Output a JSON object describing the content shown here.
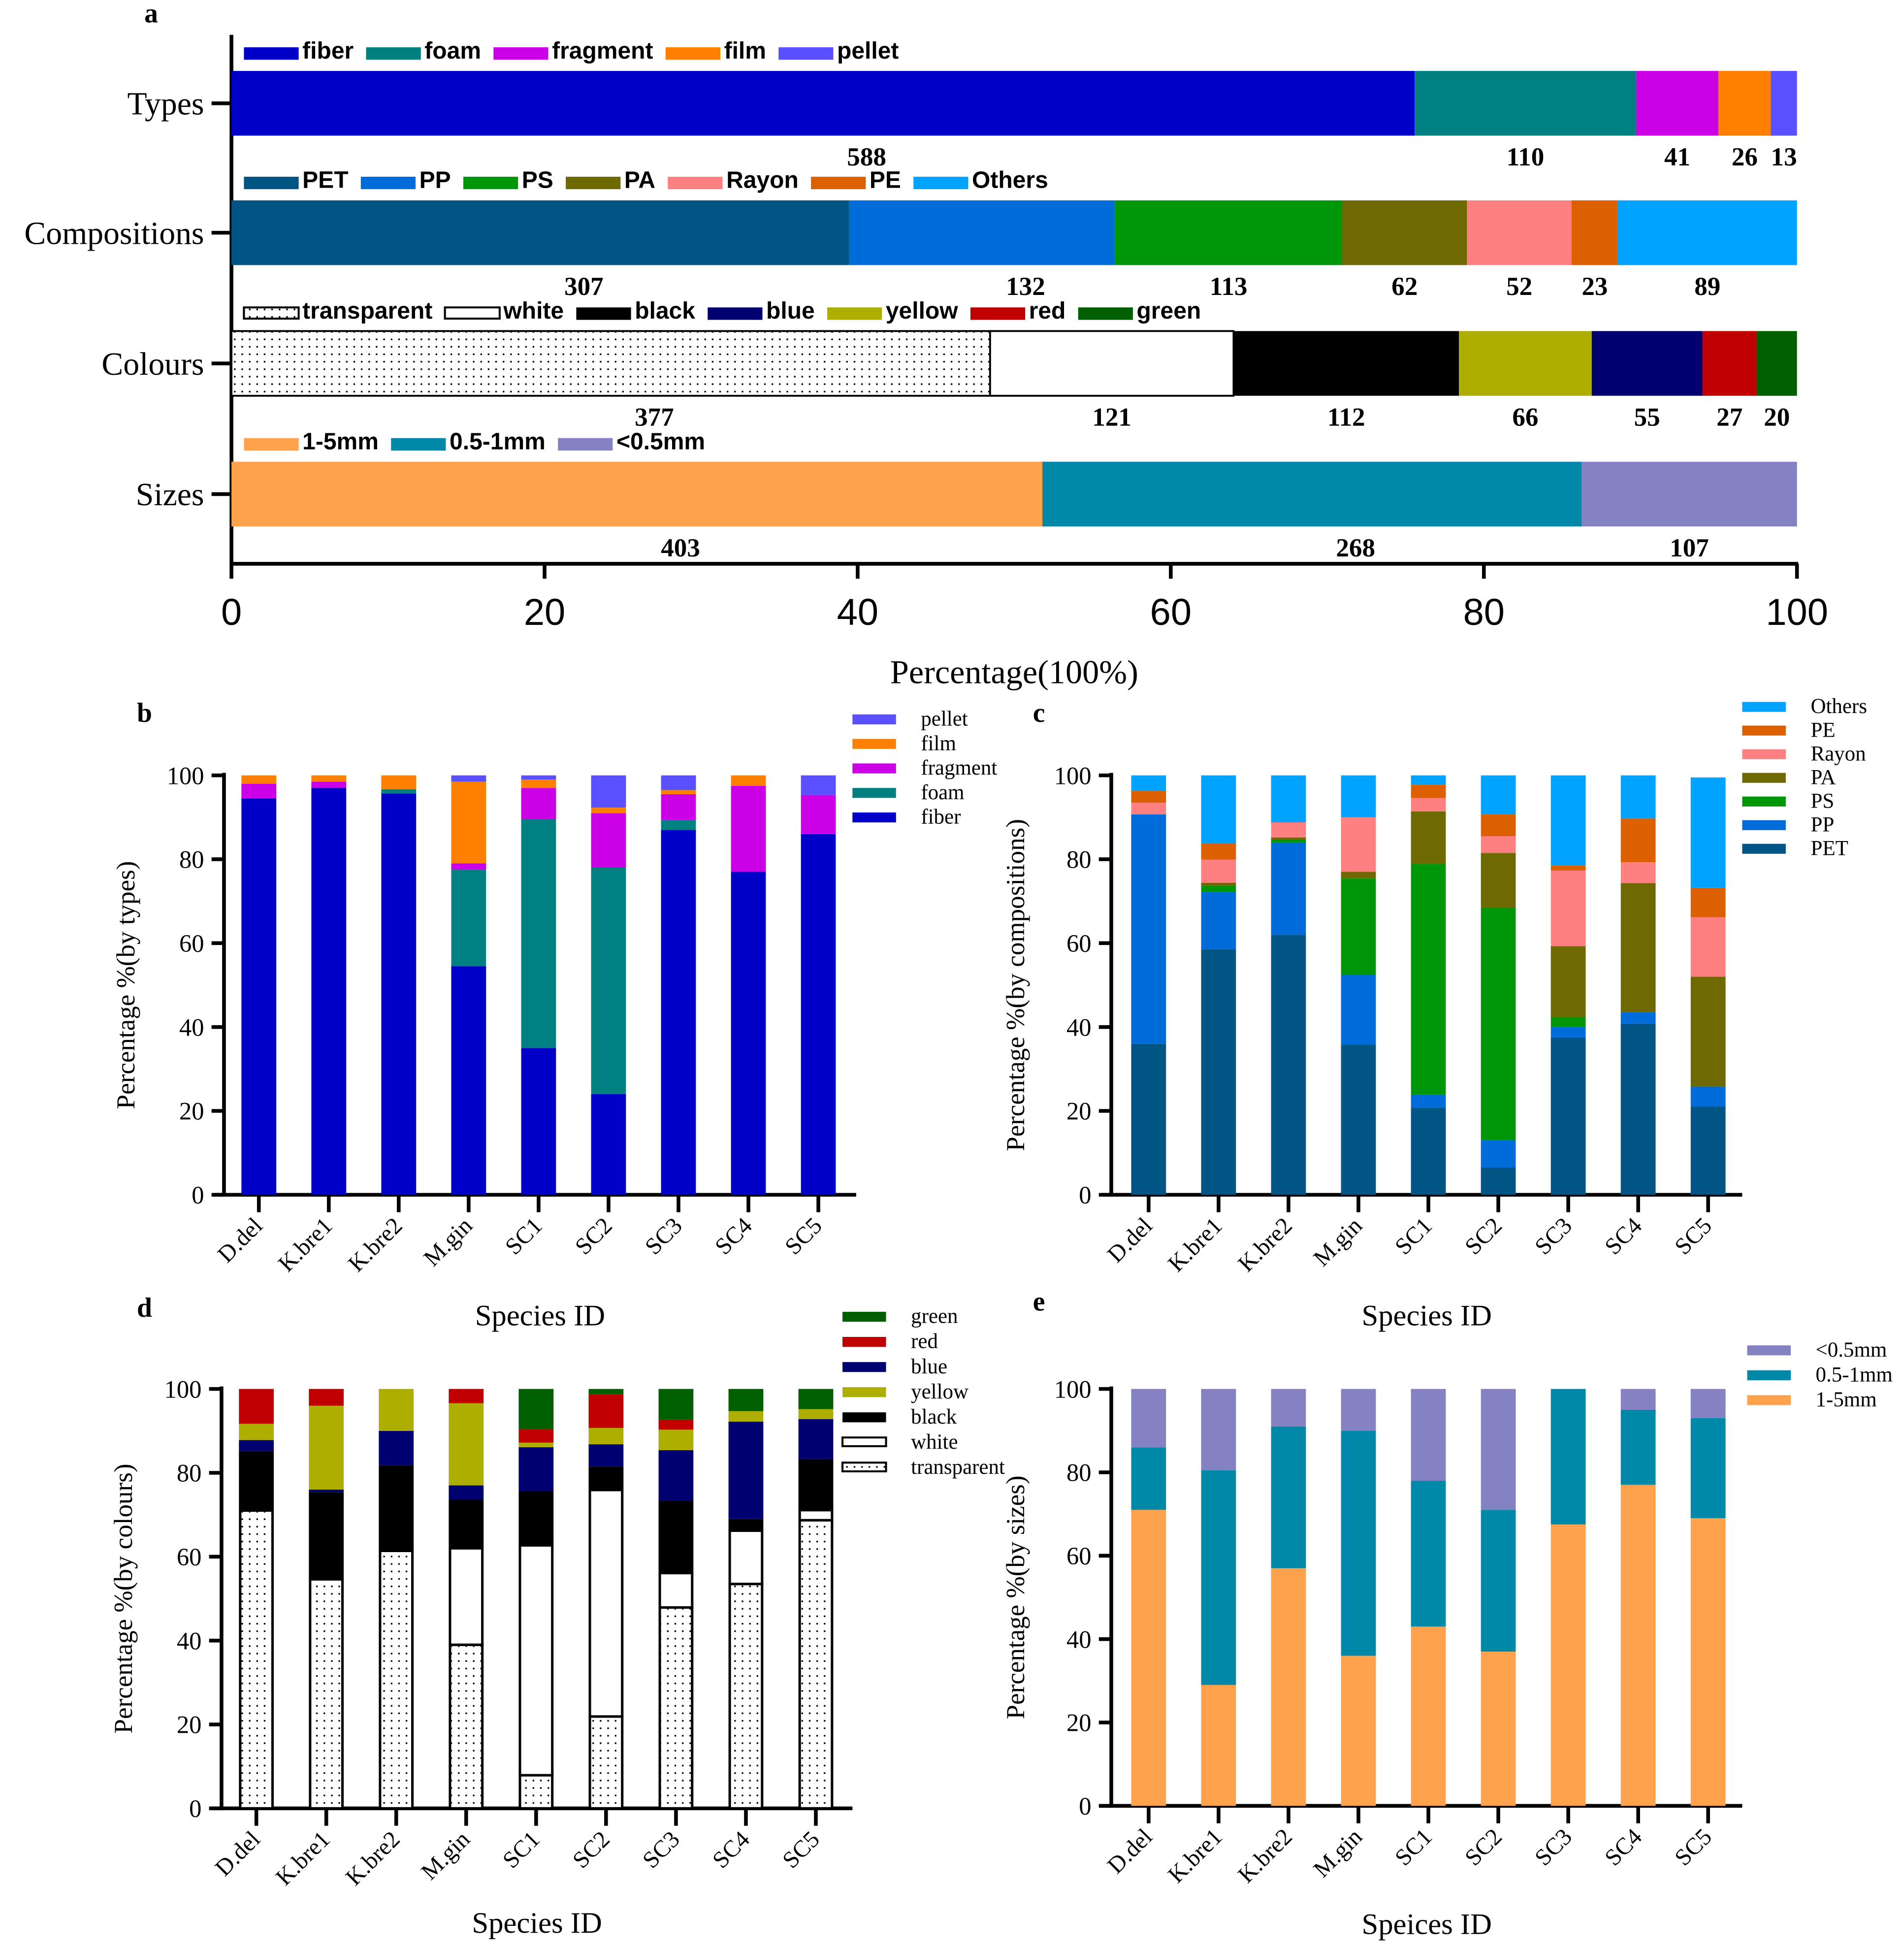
{
  "panel_letters": [
    "a",
    "b",
    "c",
    "d",
    "e"
  ],
  "chart_data": [
    {
      "panel": "a",
      "type": "bar",
      "orientation": "horizontal",
      "stacked_percent": true,
      "xlabel": "Percentage(100%)",
      "xlim": [
        0,
        100
      ],
      "xticks": [
        0,
        20,
        40,
        60,
        80,
        100
      ],
      "rows": [
        {
          "category": "Types",
          "legend": [
            [
              "fiber",
              "#0000C8"
            ],
            [
              "foam",
              "#008080"
            ],
            [
              "fragment",
              "#CC00E6"
            ],
            [
              "film",
              "#FF8000"
            ],
            [
              "pellet",
              "#5A50FF"
            ]
          ],
          "segments": [
            [
              "fiber",
              588
            ],
            [
              "foam",
              110
            ],
            [
              "fragment",
              41
            ],
            [
              "film",
              26
            ],
            [
              "pellet",
              13
            ]
          ]
        },
        {
          "category": "Compositions",
          "legend": [
            [
              "PET",
              "#005585"
            ],
            [
              "PP",
              "#006CD9"
            ],
            [
              "PS",
              "#00960A"
            ],
            [
              "PA",
              "#6E6900"
            ],
            [
              "Rayon",
              "#FF8080"
            ],
            [
              "PE",
              "#DC6000"
            ],
            [
              "Others",
              "#00A3FF"
            ]
          ],
          "segments": [
            [
              "PET",
              307
            ],
            [
              "PP",
              132
            ],
            [
              "PS",
              113
            ],
            [
              "PA",
              62
            ],
            [
              "Rayon",
              52
            ],
            [
              "PE",
              23
            ],
            [
              "Others",
              89
            ]
          ]
        },
        {
          "category": "Colours",
          "legend": [
            [
              "transparent",
              "pattern"
            ],
            [
              "white",
              "#FFFFFF"
            ],
            [
              "black",
              "#000000"
            ],
            [
              "blue",
              "#000070"
            ],
            [
              "yellow",
              "#AEAE00"
            ],
            [
              "red",
              "#C00000"
            ],
            [
              "green",
              "#005F00"
            ]
          ],
          "segments": [
            [
              "transparent",
              377
            ],
            [
              "white",
              121
            ],
            [
              "black",
              112
            ],
            [
              "yellow",
              66
            ],
            [
              "blue",
              55
            ],
            [
              "red",
              27
            ],
            [
              "green",
              20
            ]
          ]
        },
        {
          "category": "Sizes",
          "legend": [
            [
              "1-5mm",
              "#FFA24D"
            ],
            [
              "0.5-1mm",
              "#0088A8"
            ],
            [
              "<0.5mm",
              "#8582C4"
            ]
          ],
          "segments": [
            [
              "1-5mm",
              403
            ],
            [
              "0.5-1mm",
              268
            ],
            [
              "<0.5mm",
              107
            ]
          ]
        }
      ]
    },
    {
      "panel": "b",
      "type": "bar",
      "stacked": true,
      "xlabel": "Species ID",
      "ylabel": "Percentage %(by types)",
      "ylim": [
        0,
        100
      ],
      "yticks": [
        0,
        20,
        40,
        60,
        80,
        100
      ],
      "categories": [
        "D.del",
        "K.bre1",
        "K.bre2",
        "M.gin",
        "SC1",
        "SC2",
        "SC3",
        "SC4",
        "SC5"
      ],
      "series": [
        {
          "name": "fiber",
          "color": "#0000C8",
          "values": [
            94.5,
            97,
            95.7,
            54.5,
            35,
            24,
            87,
            77,
            86
          ]
        },
        {
          "name": "foam",
          "color": "#008080",
          "values": [
            0,
            0,
            1,
            23,
            54.5,
            54,
            2.3,
            0,
            0
          ]
        },
        {
          "name": "fragment",
          "color": "#CC00E6",
          "values": [
            3.5,
            1.5,
            0,
            1.5,
            7.5,
            13,
            6.2,
            20.5,
            9.3
          ]
        },
        {
          "name": "film",
          "color": "#FF8000",
          "values": [
            2,
            1.5,
            3.3,
            19.5,
            2,
            1.3,
            1,
            2.5,
            0
          ]
        },
        {
          "name": "pellet",
          "color": "#5A50FF",
          "values": [
            0,
            0,
            0,
            1.5,
            1,
            7.7,
            3.5,
            0,
            4.7
          ]
        }
      ],
      "legend_order": [
        "pellet",
        "film",
        "fragment",
        "foam",
        "fiber"
      ]
    },
    {
      "panel": "c",
      "type": "bar",
      "stacked": true,
      "xlabel": "Species ID",
      "ylabel": "Percentage %(by compositions)",
      "ylim": [
        0,
        100
      ],
      "yticks": [
        0,
        20,
        40,
        60,
        80,
        100
      ],
      "categories": [
        "D.del",
        "K.bre1",
        "K.bre2",
        "M.gin",
        "SC1",
        "SC2",
        "SC3",
        "SC4",
        "SC5"
      ],
      "series": [
        {
          "name": "PET",
          "color": "#005585",
          "values": [
            36,
            58.5,
            62,
            35.8,
            20.7,
            6.5,
            37.5,
            40.8,
            21
          ]
        },
        {
          "name": "PP",
          "color": "#006CD9",
          "values": [
            54.7,
            13.7,
            22,
            16.6,
            3.2,
            6.5,
            2.5,
            2.7,
            4.8
          ]
        },
        {
          "name": "PS",
          "color": "#00960A",
          "values": [
            0,
            1.5,
            0.7,
            23,
            55,
            55.5,
            2.3,
            0,
            0
          ]
        },
        {
          "name": "PA",
          "color": "#6E6900",
          "values": [
            0,
            0.7,
            0.5,
            1.6,
            12.5,
            13,
            17,
            30.8,
            26.2
          ]
        },
        {
          "name": "Rayon",
          "color": "#FF8080",
          "values": [
            2.8,
            5.5,
            3.6,
            13,
            3.2,
            4,
            18,
            5,
            14.2
          ]
        },
        {
          "name": "PE",
          "color": "#DC6000",
          "values": [
            2.8,
            3.9,
            0,
            0,
            3.2,
            5.2,
            1.2,
            10.4,
            7
          ]
        },
        {
          "name": "Others",
          "color": "#00A3FF",
          "values": [
            3.7,
            16.2,
            11.2,
            10,
            2.2,
            9.3,
            21.5,
            10.3,
            26.3
          ]
        }
      ],
      "legend_order": [
        "Others",
        "PE",
        "Rayon",
        "PA",
        "PS",
        "PP",
        "PET"
      ]
    },
    {
      "panel": "d",
      "type": "bar",
      "stacked": true,
      "xlabel": "Species ID",
      "ylabel": "Percentage %(by colours)",
      "ylim": [
        0,
        100
      ],
      "yticks": [
        0,
        20,
        40,
        60,
        80,
        100
      ],
      "categories": [
        "D.del",
        "K.bre1",
        "K.bre2",
        "M.gin",
        "SC1",
        "SC2",
        "SC3",
        "SC4",
        "SC5"
      ],
      "series": [
        {
          "name": "transparent",
          "color": "pattern",
          "values": [
            71,
            54.6,
            61.4,
            39,
            7.9,
            21.9,
            47.9,
            53.5,
            68.7
          ]
        },
        {
          "name": "white",
          "color": "#FFFFFF",
          "values": [
            0,
            0,
            0.4,
            23,
            54.8,
            54,
            8.2,
            12.7,
            2.4
          ]
        },
        {
          "name": "black",
          "color": "#000000",
          "values": [
            14.2,
            20.8,
            20,
            11.6,
            12.9,
            5.6,
            17.2,
            2.8,
            12.2
          ]
        },
        {
          "name": "blue",
          "color": "#000070",
          "values": [
            2.6,
            0.6,
            8.2,
            3.4,
            10.5,
            5.3,
            12.1,
            23.2,
            9.5
          ]
        },
        {
          "name": "yellow",
          "color": "#AEAE00",
          "values": [
            3.9,
            20,
            10,
            19.6,
            1.1,
            3.9,
            4.9,
            2.5,
            2.4
          ]
        },
        {
          "name": "red",
          "color": "#C00000",
          "values": [
            8.3,
            4,
            0,
            3.4,
            3.2,
            8,
            2.4,
            0,
            0
          ]
        },
        {
          "name": "green",
          "color": "#005F00",
          "values": [
            0,
            0,
            0,
            0,
            9.6,
            1.3,
            7.3,
            5.3,
            4.8
          ]
        }
      ],
      "legend_order": [
        "green",
        "red",
        "blue",
        "yellow",
        "black",
        "white",
        "transparent"
      ]
    },
    {
      "panel": "e",
      "type": "bar",
      "stacked": true,
      "xlabel": "Speices ID",
      "ylabel": "Percentage %(by sizes)",
      "ylim": [
        0,
        100
      ],
      "yticks": [
        0,
        20,
        40,
        60,
        80,
        100
      ],
      "categories": [
        "D.del",
        "K.bre1",
        "K.bre2",
        "M.gin",
        "SC1",
        "SC2",
        "SC3",
        "SC4",
        "SC5"
      ],
      "series": [
        {
          "name": "1-5mm",
          "color": "#FFA24D",
          "values": [
            71,
            29,
            57,
            36,
            43,
            37,
            67.5,
            77,
            69
          ]
        },
        {
          "name": "0.5-1mm",
          "color": "#0088A8",
          "values": [
            15,
            51.5,
            34,
            54,
            35,
            34,
            32.5,
            18,
            24
          ]
        },
        {
          "name": "<0.5mm",
          "color": "#8582C4",
          "values": [
            14,
            19.5,
            9,
            10,
            22,
            29,
            0,
            5,
            7
          ]
        }
      ],
      "legend_order": [
        "<0.5mm",
        "0.5-1mm",
        "1-5mm"
      ]
    }
  ]
}
